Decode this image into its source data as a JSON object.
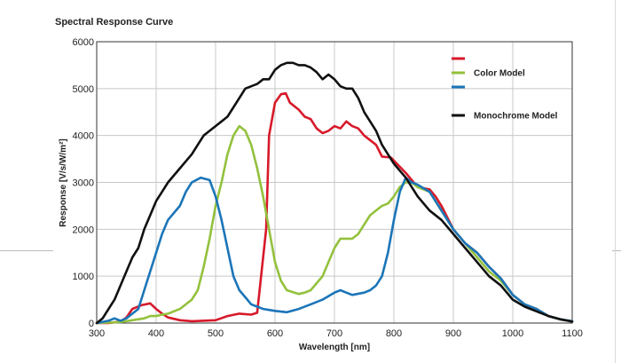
{
  "chart_data": {
    "type": "line",
    "title": "Spectral Response Curve",
    "xlabel": "Wavelength [nm]",
    "ylabel": "Response [V/s/W/m²]",
    "xlim": [
      300,
      1100
    ],
    "ylim": [
      0,
      6000
    ],
    "x_ticks": [
      300,
      400,
      500,
      600,
      700,
      800,
      900,
      1000,
      1100
    ],
    "y_ticks": [
      0,
      1000,
      2000,
      3000,
      4000,
      5000,
      6000
    ],
    "grid": true,
    "legend_position": "top-right",
    "series": [
      {
        "name": "",
        "color": "#d7192a",
        "points": [
          [
            300,
            0
          ],
          [
            320,
            0
          ],
          [
            340,
            30
          ],
          [
            350,
            120
          ],
          [
            360,
            300
          ],
          [
            375,
            380
          ],
          [
            390,
            420
          ],
          [
            400,
            300
          ],
          [
            410,
            200
          ],
          [
            420,
            120
          ],
          [
            440,
            60
          ],
          [
            460,
            40
          ],
          [
            500,
            60
          ],
          [
            520,
            150
          ],
          [
            540,
            200
          ],
          [
            560,
            180
          ],
          [
            570,
            220
          ],
          [
            585,
            2000
          ],
          [
            590,
            4000
          ],
          [
            600,
            4700
          ],
          [
            610,
            4880
          ],
          [
            618,
            4900
          ],
          [
            625,
            4700
          ],
          [
            640,
            4550
          ],
          [
            650,
            4400
          ],
          [
            660,
            4350
          ],
          [
            670,
            4150
          ],
          [
            680,
            4050
          ],
          [
            690,
            4100
          ],
          [
            700,
            4200
          ],
          [
            710,
            4150
          ],
          [
            720,
            4300
          ],
          [
            730,
            4200
          ],
          [
            740,
            4150
          ],
          [
            750,
            4000
          ],
          [
            770,
            3800
          ],
          [
            780,
            3550
          ],
          [
            795,
            3530
          ],
          [
            820,
            3200
          ],
          [
            840,
            2900
          ],
          [
            860,
            2850
          ],
          [
            870,
            2700
          ],
          [
            880,
            2500
          ],
          [
            900,
            2000
          ],
          [
            920,
            1700
          ],
          [
            940,
            1500
          ],
          [
            960,
            1200
          ],
          [
            980,
            950
          ],
          [
            1000,
            600
          ],
          [
            1020,
            400
          ],
          [
            1040,
            300
          ],
          [
            1060,
            150
          ],
          [
            1080,
            80
          ],
          [
            1100,
            40
          ]
        ]
      },
      {
        "name": "Color Model",
        "color": "#93c13d",
        "points": [
          [
            300,
            0
          ],
          [
            340,
            20
          ],
          [
            360,
            60
          ],
          [
            380,
            100
          ],
          [
            390,
            150
          ],
          [
            400,
            150
          ],
          [
            410,
            180
          ],
          [
            420,
            200
          ],
          [
            440,
            300
          ],
          [
            450,
            400
          ],
          [
            460,
            500
          ],
          [
            470,
            700
          ],
          [
            480,
            1200
          ],
          [
            490,
            1800
          ],
          [
            500,
            2500
          ],
          [
            510,
            3000
          ],
          [
            520,
            3600
          ],
          [
            530,
            4000
          ],
          [
            540,
            4200
          ],
          [
            550,
            4100
          ],
          [
            560,
            3800
          ],
          [
            570,
            3300
          ],
          [
            580,
            2700
          ],
          [
            590,
            2000
          ],
          [
            600,
            1300
          ],
          [
            610,
            900
          ],
          [
            620,
            700
          ],
          [
            640,
            620
          ],
          [
            650,
            650
          ],
          [
            660,
            700
          ],
          [
            680,
            1000
          ],
          [
            690,
            1300
          ],
          [
            700,
            1600
          ],
          [
            710,
            1800
          ],
          [
            720,
            1800
          ],
          [
            730,
            1800
          ],
          [
            740,
            1900
          ],
          [
            760,
            2300
          ],
          [
            780,
            2500
          ],
          [
            790,
            2550
          ],
          [
            800,
            2700
          ],
          [
            810,
            2900
          ],
          [
            820,
            3000
          ],
          [
            830,
            3000
          ],
          [
            840,
            2900
          ],
          [
            860,
            2800
          ],
          [
            880,
            2400
          ],
          [
            900,
            2000
          ],
          [
            920,
            1700
          ],
          [
            940,
            1400
          ],
          [
            960,
            1100
          ],
          [
            980,
            900
          ],
          [
            1000,
            600
          ],
          [
            1020,
            400
          ],
          [
            1040,
            300
          ],
          [
            1060,
            150
          ],
          [
            1080,
            80
          ],
          [
            1100,
            40
          ]
        ]
      },
      {
        "name": "",
        "color": "#1b75b8",
        "points": [
          [
            300,
            0
          ],
          [
            320,
            50
          ],
          [
            330,
            100
          ],
          [
            340,
            50
          ],
          [
            350,
            100
          ],
          [
            370,
            300
          ],
          [
            380,
            700
          ],
          [
            390,
            1100
          ],
          [
            400,
            1500
          ],
          [
            410,
            1900
          ],
          [
            420,
            2200
          ],
          [
            440,
            2500
          ],
          [
            450,
            2800
          ],
          [
            460,
            3000
          ],
          [
            475,
            3100
          ],
          [
            490,
            3050
          ],
          [
            500,
            2700
          ],
          [
            510,
            2200
          ],
          [
            520,
            1600
          ],
          [
            530,
            1000
          ],
          [
            540,
            700
          ],
          [
            550,
            550
          ],
          [
            560,
            400
          ],
          [
            570,
            350
          ],
          [
            580,
            300
          ],
          [
            590,
            280
          ],
          [
            600,
            260
          ],
          [
            620,
            230
          ],
          [
            640,
            300
          ],
          [
            660,
            400
          ],
          [
            680,
            500
          ],
          [
            700,
            650
          ],
          [
            710,
            700
          ],
          [
            720,
            650
          ],
          [
            730,
            600
          ],
          [
            750,
            650
          ],
          [
            760,
            700
          ],
          [
            770,
            800
          ],
          [
            780,
            1000
          ],
          [
            790,
            1500
          ],
          [
            800,
            2200
          ],
          [
            810,
            2800
          ],
          [
            820,
            3100
          ],
          [
            830,
            3000
          ],
          [
            840,
            2950
          ],
          [
            860,
            2800
          ],
          [
            870,
            2600
          ],
          [
            880,
            2400
          ],
          [
            900,
            2000
          ],
          [
            920,
            1700
          ],
          [
            940,
            1500
          ],
          [
            960,
            1200
          ],
          [
            980,
            950
          ],
          [
            1000,
            600
          ],
          [
            1020,
            400
          ],
          [
            1040,
            300
          ],
          [
            1060,
            150
          ],
          [
            1080,
            80
          ],
          [
            1100,
            40
          ]
        ]
      },
      {
        "name": "Monochrome Model",
        "color": "#111111",
        "points": [
          [
            300,
            0
          ],
          [
            310,
            100
          ],
          [
            320,
            300
          ],
          [
            330,
            500
          ],
          [
            340,
            800
          ],
          [
            350,
            1100
          ],
          [
            360,
            1400
          ],
          [
            370,
            1600
          ],
          [
            380,
            2000
          ],
          [
            390,
            2300
          ],
          [
            400,
            2600
          ],
          [
            410,
            2800
          ],
          [
            420,
            3000
          ],
          [
            440,
            3300
          ],
          [
            460,
            3600
          ],
          [
            470,
            3800
          ],
          [
            480,
            4000
          ],
          [
            490,
            4100
          ],
          [
            500,
            4200
          ],
          [
            510,
            4300
          ],
          [
            520,
            4400
          ],
          [
            530,
            4600
          ],
          [
            540,
            4800
          ],
          [
            550,
            5000
          ],
          [
            560,
            5050
          ],
          [
            570,
            5100
          ],
          [
            580,
            5200
          ],
          [
            590,
            5200
          ],
          [
            600,
            5400
          ],
          [
            610,
            5500
          ],
          [
            620,
            5550
          ],
          [
            630,
            5550
          ],
          [
            640,
            5500
          ],
          [
            650,
            5500
          ],
          [
            660,
            5450
          ],
          [
            670,
            5350
          ],
          [
            680,
            5200
          ],
          [
            690,
            5300
          ],
          [
            700,
            5200
          ],
          [
            710,
            5050
          ],
          [
            720,
            5000
          ],
          [
            730,
            5000
          ],
          [
            740,
            4800
          ],
          [
            750,
            4500
          ],
          [
            760,
            4300
          ],
          [
            770,
            4100
          ],
          [
            780,
            3800
          ],
          [
            790,
            3600
          ],
          [
            800,
            3400
          ],
          [
            820,
            3100
          ],
          [
            840,
            2700
          ],
          [
            860,
            2400
          ],
          [
            880,
            2200
          ],
          [
            900,
            1900
          ],
          [
            920,
            1600
          ],
          [
            940,
            1300
          ],
          [
            960,
            1000
          ],
          [
            980,
            800
          ],
          [
            1000,
            500
          ],
          [
            1020,
            350
          ],
          [
            1040,
            250
          ],
          [
            1060,
            150
          ],
          [
            1080,
            80
          ],
          [
            1100,
            30
          ]
        ]
      }
    ]
  }
}
